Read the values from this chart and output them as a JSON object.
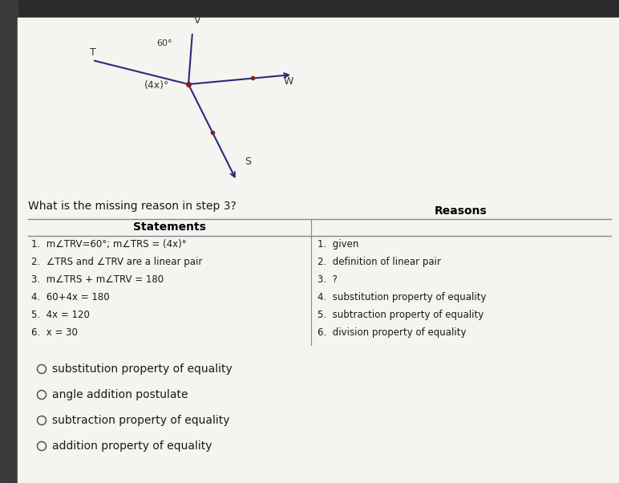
{
  "background_color": "#f0eeeb",
  "top_bar_color": "#2a2a2a",
  "page_color": "#f5f4f1",
  "question": "What is the missing reason in step 3?",
  "question_fontsize": 10,
  "table_header_statements": "Statements",
  "table_header_reasons": "Reasons",
  "statements": [
    "1.  m∠TRV=60°; m∠TRS = (4x)°",
    "2.  ∠TRS and ∠TRV are a linear pair",
    "3.  m∠TRS + m∠TRV = 180",
    "4.  60+4x = 180",
    "5.  4x = 120",
    "6.  x = 30"
  ],
  "reasons": [
    "1.  given",
    "2.  definition of linear pair",
    "3.  ?",
    "4.  substitution property of equality",
    "5.  subtraction property of equality",
    "6.  division property of equality"
  ],
  "choices": [
    "substitution property of equality",
    "angle addition postulate",
    "subtraction property of equality",
    "addition property of equality"
  ],
  "text_color": "#1a1a1a",
  "header_color": "#000000",
  "divider_color": "#888888",
  "circle_color": "#555555",
  "diagram_color": "#2b2b7a",
  "diagram_text_color": "#333333",
  "vertex_color": "#7a2222"
}
